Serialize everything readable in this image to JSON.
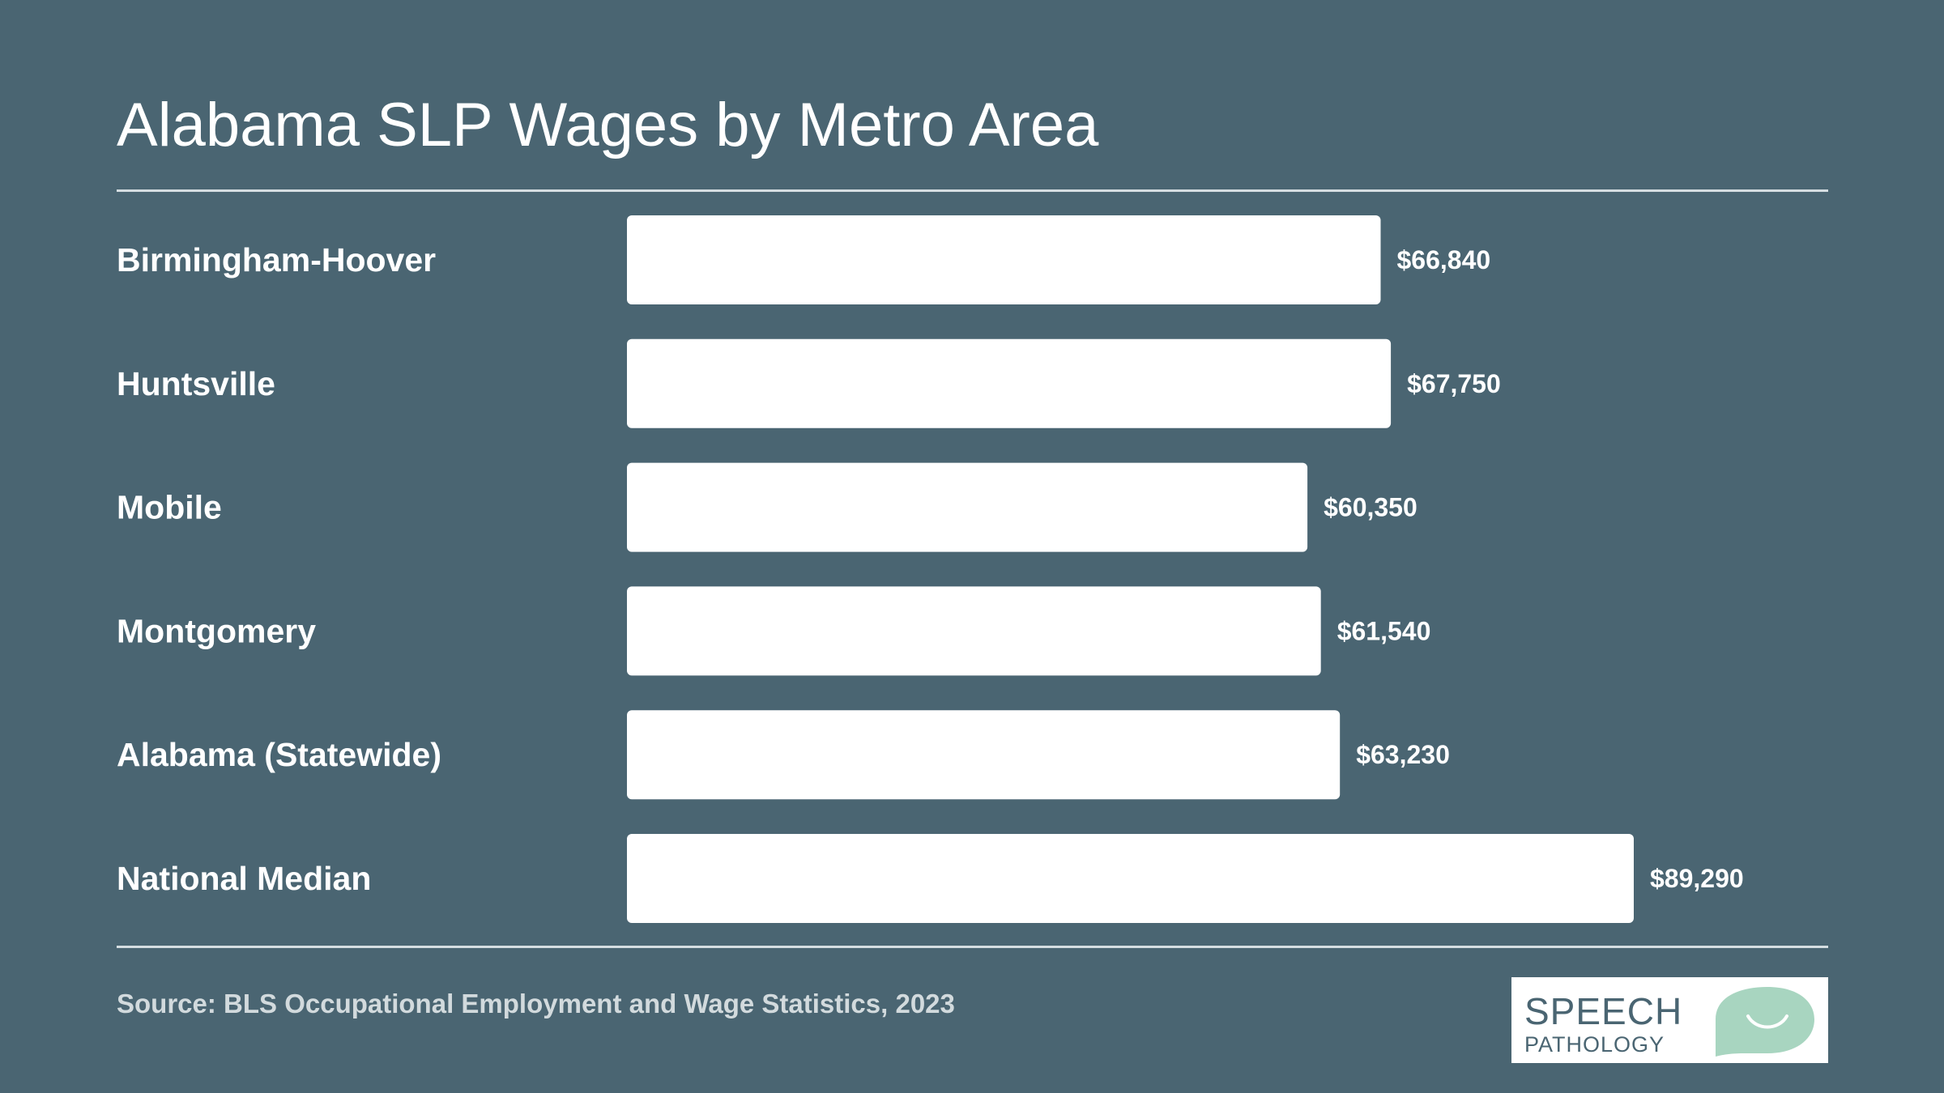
{
  "chart_data": {
    "type": "bar",
    "orientation": "horizontal",
    "title": "Alabama SLP Wages by Metro Area",
    "categories": [
      "Birmingham-Hoover",
      "Huntsville",
      "Mobile",
      "Montgomery",
      "Alabama (Statewide)",
      "National Median"
    ],
    "values": [
      66840,
      67750,
      60350,
      61540,
      63230,
      89290
    ],
    "value_labels": [
      "$66,840",
      "$67,750",
      "$60,350",
      "$61,540",
      "$63,230",
      "$89,290"
    ],
    "xlim": [
      0,
      89290
    ],
    "grid": false,
    "bar_color": "#ffffff",
    "background_color": "#4a6572"
  },
  "source": "Source: BLS Occupational Employment and Wage Statistics, 2023",
  "logo": {
    "line1": "SPEECH",
    "line2": "PATHOLOGY",
    "bubble_color": "#a8d5c0"
  }
}
